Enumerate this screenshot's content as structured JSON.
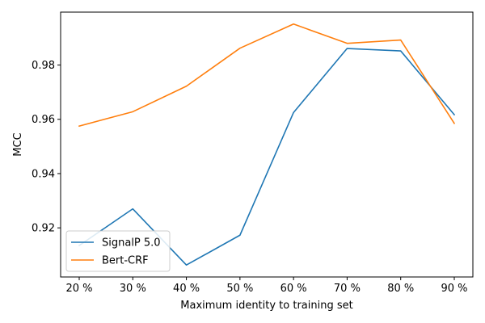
{
  "chart_data": {
    "type": "line",
    "title": "",
    "xlabel": "Maximum identity to training set",
    "ylabel": "MCC",
    "categories": [
      "20 %",
      "30 %",
      "40 %",
      "50 %",
      "60 %",
      "70 %",
      "80 %",
      "90 %"
    ],
    "series": [
      {
        "name": "SignalP 5.0",
        "color": "#1f77b4",
        "values": [
          0.9135,
          0.927,
          0.9063,
          0.9173,
          0.9625,
          0.9861,
          0.9852,
          0.9617
        ]
      },
      {
        "name": "Bert-CRF",
        "color": "#ff7f0e",
        "values": [
          0.9575,
          0.9628,
          0.9722,
          0.9862,
          0.9951,
          0.988,
          0.9892,
          0.9585
        ]
      }
    ],
    "yticks": [
      0.92,
      0.94,
      0.96,
      0.98
    ],
    "ytick_labels": [
      "0.92",
      "0.94",
      "0.96",
      "0.98"
    ],
    "ylim": [
      0.9019,
      0.9995
    ],
    "grid": false,
    "legend_position": "lower-left"
  }
}
